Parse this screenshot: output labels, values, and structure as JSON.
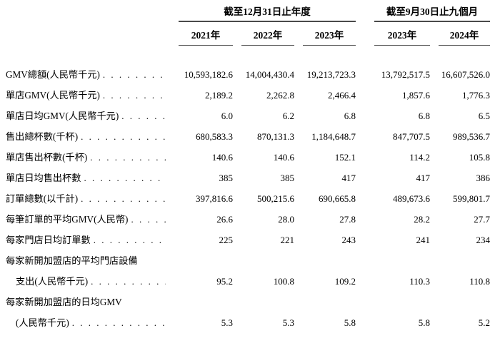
{
  "table": {
    "col_groups": [
      {
        "label": "截至12月31日止年度"
      },
      {
        "label": "截至9月30日止九個月"
      }
    ],
    "columns": [
      "2021年",
      "2022年",
      "2023年",
      "2023年",
      "2024年"
    ],
    "rows": [
      {
        "label": "GMV總額(人民幣千元)",
        "values": [
          "10,593,182.6",
          "14,004,430.4",
          "19,213,723.3",
          "13,792,517.5",
          "16,607,526.0"
        ]
      },
      {
        "label": "單店GMV(人民幣千元)",
        "values": [
          "2,189.2",
          "2,262.8",
          "2,466.4",
          "1,857.6",
          "1,776.3"
        ]
      },
      {
        "label": "單店日均GMV(人民幣千元)",
        "values": [
          "6.0",
          "6.2",
          "6.8",
          "6.8",
          "6.5"
        ]
      },
      {
        "label": "售出總杯數(千杯)",
        "values": [
          "680,583.3",
          "870,131.3",
          "1,184,648.7",
          "847,707.5",
          "989,536.7"
        ]
      },
      {
        "label": "單店售出杯數(千杯)",
        "values": [
          "140.6",
          "140.6",
          "152.1",
          "114.2",
          "105.8"
        ]
      },
      {
        "label": "單店日均售出杯數",
        "values": [
          "385",
          "385",
          "417",
          "417",
          "386"
        ]
      },
      {
        "label": "訂單總數(以千計)",
        "values": [
          "397,816.6",
          "500,215.6",
          "690,665.8",
          "489,673.6",
          "599,801.7"
        ]
      },
      {
        "label": "每筆訂單的平均GMV(人民幣)",
        "values": [
          "26.6",
          "28.0",
          "27.8",
          "28.2",
          "27.7"
        ]
      },
      {
        "label": "每家門店日均訂單數",
        "values": [
          "225",
          "221",
          "243",
          "241",
          "234"
        ]
      },
      {
        "label": "每家新開加盟店的平均門店設備",
        "label2": "支出(人民幣千元)",
        "values": [
          "95.2",
          "100.8",
          "109.2",
          "110.3",
          "110.8"
        ]
      },
      {
        "label": "每家新開加盟店的日均GMV",
        "label2": "(人民幣千元)",
        "values": [
          "5.3",
          "5.3",
          "5.8",
          "5.8",
          "5.2"
        ]
      }
    ]
  }
}
